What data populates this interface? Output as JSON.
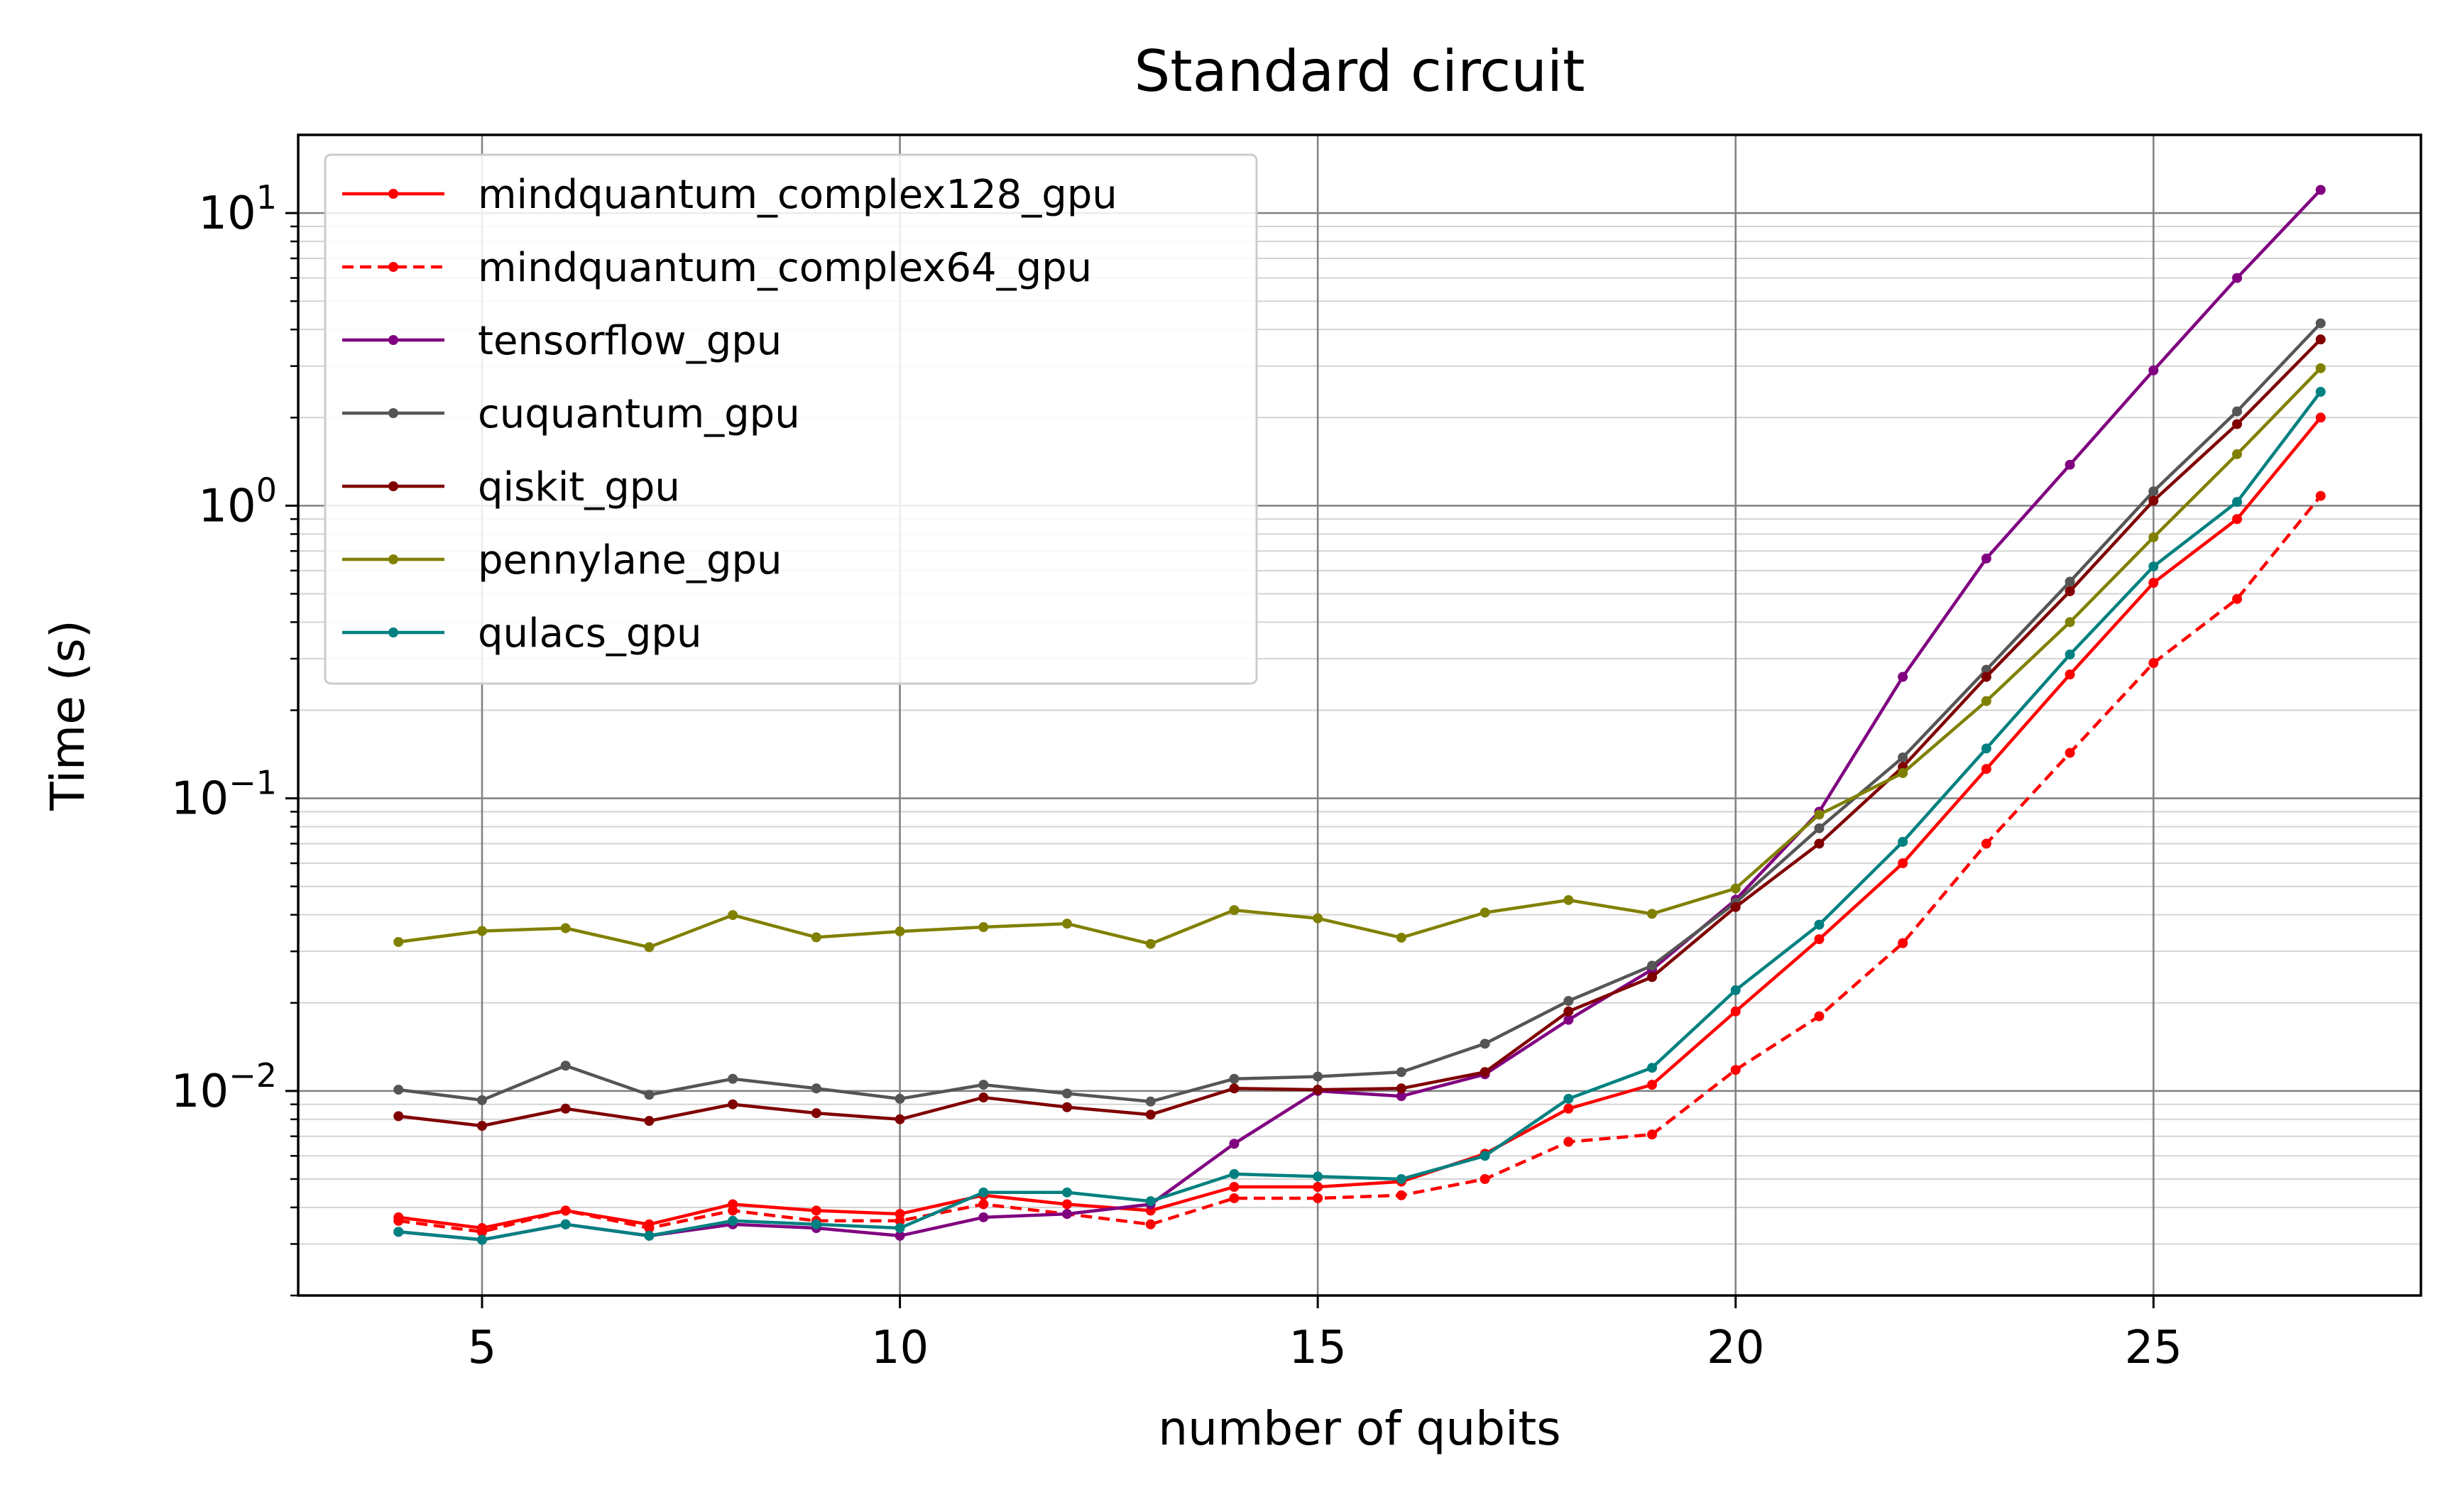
{
  "chart_data": {
    "type": "line",
    "title": "Standard circuit",
    "xlabel": "number of qubits",
    "ylabel": "Time (s)",
    "xscale": "linear",
    "yscale": "log",
    "xlim": [
      2.8,
      28.2
    ],
    "ylim": [
      0.002,
      18.5
    ],
    "grid": true,
    "legend_position": "upper-left",
    "xticks": [
      {
        "value": 5,
        "label": "5"
      },
      {
        "value": 10,
        "label": "10"
      },
      {
        "value": 15,
        "label": "15"
      },
      {
        "value": 20,
        "label": "20"
      },
      {
        "value": 25,
        "label": "25"
      }
    ],
    "yticks": [
      {
        "value": 0.01,
        "base": "10",
        "exp": "−2"
      },
      {
        "value": 0.1,
        "base": "10",
        "exp": "−1"
      },
      {
        "value": 1,
        "base": "10",
        "exp": "0"
      },
      {
        "value": 10,
        "base": "10",
        "exp": "1"
      }
    ],
    "x": [
      4,
      5,
      6,
      7,
      8,
      9,
      10,
      11,
      12,
      13,
      14,
      15,
      16,
      17,
      18,
      19,
      20,
      21,
      22,
      23,
      24,
      25,
      26,
      27
    ],
    "series": [
      {
        "name": "mindquantum_complex128_gpu",
        "color": "#ff0000",
        "dashed": false,
        "values": [
          0.0037,
          0.0034,
          0.0039,
          0.0035,
          0.0041,
          0.0039,
          0.0038,
          0.0044,
          0.0041,
          0.0039,
          0.0047,
          0.0047,
          0.0049,
          0.0061,
          0.0087,
          0.0105,
          0.0187,
          0.033,
          0.06,
          0.126,
          0.265,
          0.545,
          0.9,
          2.0
        ]
      },
      {
        "name": "mindquantum_complex64_gpu",
        "color": "#ff0000",
        "dashed": true,
        "values": [
          0.0036,
          0.0033,
          0.0039,
          0.0034,
          0.0039,
          0.0036,
          0.0036,
          0.0041,
          0.0038,
          0.0035,
          0.0043,
          0.0043,
          0.0044,
          0.005,
          0.0067,
          0.0071,
          0.0118,
          0.018,
          0.032,
          0.07,
          0.143,
          0.29,
          0.48,
          1.08
        ]
      },
      {
        "name": "tensorflow_gpu",
        "color": "#800080",
        "dashed": false,
        "values": [
          0.0033,
          0.0031,
          0.0035,
          0.0032,
          0.0035,
          0.0034,
          0.0032,
          0.0037,
          0.0038,
          0.0041,
          0.0066,
          0.01,
          0.0096,
          0.0114,
          0.0175,
          0.026,
          0.045,
          0.09,
          0.26,
          0.66,
          1.38,
          2.9,
          6.0,
          12.0
        ]
      },
      {
        "name": "cuquantum_gpu",
        "color": "#555555",
        "dashed": false,
        "values": [
          0.0101,
          0.0093,
          0.0122,
          0.0097,
          0.011,
          0.0102,
          0.0094,
          0.0105,
          0.0098,
          0.0092,
          0.011,
          0.0112,
          0.0116,
          0.0145,
          0.0203,
          0.0268,
          0.044,
          0.079,
          0.138,
          0.275,
          0.55,
          1.12,
          2.1,
          4.2
        ]
      },
      {
        "name": "qiskit_gpu",
        "color": "#800000",
        "dashed": false,
        "values": [
          0.0082,
          0.0076,
          0.0087,
          0.0079,
          0.009,
          0.0084,
          0.008,
          0.0095,
          0.0088,
          0.0083,
          0.0102,
          0.0101,
          0.0102,
          0.0116,
          0.0187,
          0.0245,
          0.0425,
          0.07,
          0.128,
          0.26,
          0.51,
          1.04,
          1.9,
          3.7
        ]
      },
      {
        "name": "pennylane_gpu",
        "color": "#808000",
        "dashed": false,
        "values": [
          0.0323,
          0.0352,
          0.036,
          0.031,
          0.0399,
          0.0335,
          0.0351,
          0.0363,
          0.0373,
          0.0318,
          0.0415,
          0.0389,
          0.0334,
          0.0407,
          0.0449,
          0.0403,
          0.0492,
          0.088,
          0.122,
          0.215,
          0.4,
          0.78,
          1.5,
          2.95
        ]
      },
      {
        "name": "qulacs_gpu",
        "color": "#008080",
        "dashed": false,
        "values": [
          0.0033,
          0.0031,
          0.0035,
          0.0032,
          0.0036,
          0.0035,
          0.0034,
          0.0045,
          0.0045,
          0.0042,
          0.0052,
          0.0051,
          0.005,
          0.006,
          0.0094,
          0.012,
          0.0221,
          0.037,
          0.071,
          0.148,
          0.31,
          0.62,
          1.03,
          2.45
        ]
      }
    ]
  }
}
